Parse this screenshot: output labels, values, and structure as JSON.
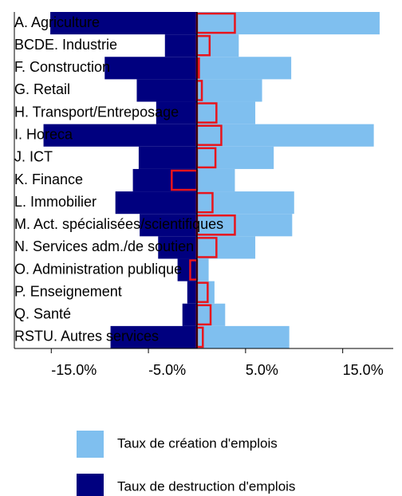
{
  "chart_data": {
    "type": "bar",
    "orientation": "horizontal",
    "categories": [
      "A. Agriculture",
      "BCDE. Industrie",
      "F. Construction",
      "G. Retail",
      "H. Transport/Entreposage",
      "I. Horeca",
      "J. ICT",
      "K. Finance",
      "L. Immobilier",
      "M. Act. spécialisées/scientifiques",
      "N. Services adm./de soutien",
      "O. Administration publique",
      "P. Enseignement",
      "Q. Santé",
      "RSTU. Autres services"
    ],
    "series": [
      {
        "name": "Taux de création d'emplois",
        "color": "#7fbfef",
        "values": [
          18.8,
          4.3,
          9.7,
          6.7,
          6.0,
          18.2,
          7.9,
          3.9,
          10.0,
          9.8,
          6.0,
          1.2,
          1.8,
          2.9,
          9.5
        ]
      },
      {
        "name": "Taux de destruction d'emplois",
        "color": "#00007f",
        "values": [
          -15.1,
          -3.3,
          -9.5,
          -6.2,
          -4.2,
          -15.8,
          -6.0,
          -6.6,
          -8.4,
          -5.9,
          -4.0,
          -2.0,
          -1.0,
          -1.5,
          -8.9
        ]
      },
      {
        "color": "#e8141c",
        "style": "outline",
        "values": [
          3.9,
          1.3,
          0.2,
          0.5,
          2.0,
          2.5,
          1.9,
          -2.6,
          1.6,
          3.9,
          2.0,
          -0.7,
          1.1,
          1.4,
          0.6
        ]
      }
    ],
    "xlim": [
      -18.8,
      20.2
    ],
    "xticks": [
      {
        "value": -15,
        "label": "-15.0%"
      },
      {
        "value": -5,
        "label": "-5.0%"
      },
      {
        "value": 5,
        "label": "5.0%"
      },
      {
        "value": 15,
        "label": "15.0%"
      }
    ],
    "legend": "bottom"
  }
}
